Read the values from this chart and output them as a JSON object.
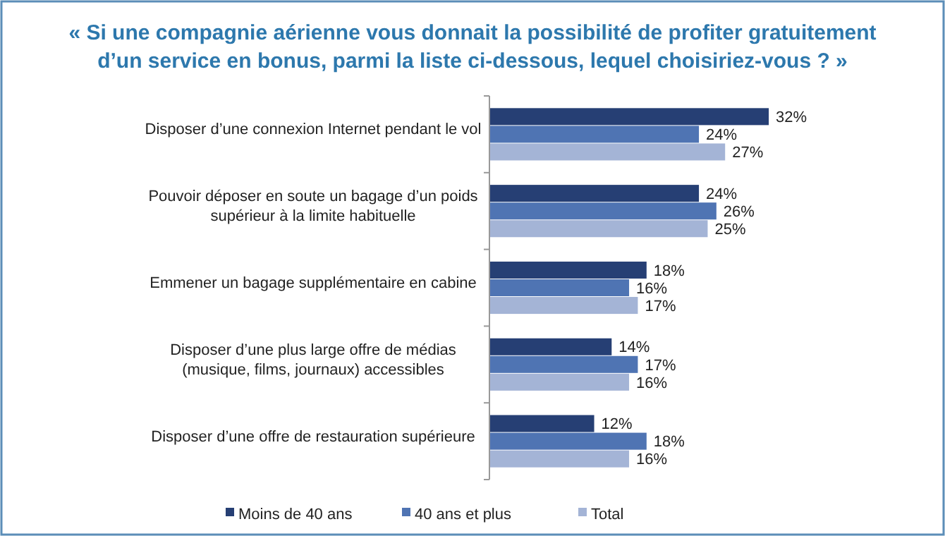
{
  "chart_data": {
    "type": "bar",
    "orientation": "horizontal",
    "title": "« Si une compagnie aérienne vous donnait la possibilité de profiter gratuitement d’un service en bonus, parmi la liste ci-dessous, lequel choisiriez-vous ? »",
    "categories": [
      "Disposer d’une connexion Internet pendant le vol",
      "Pouvoir déposer en soute un bagage d’un poids supérieur à la limite habituelle",
      "Emmener un bagage supplémentaire en cabine",
      "Disposer d’une plus large offre de médias (musique, films, journaux) accessibles",
      "Disposer d’une offre de restauration supérieure"
    ],
    "series": [
      {
        "name": "Moins de 40 ans",
        "color": "#263f74",
        "values": [
          32,
          24,
          18,
          14,
          12
        ],
        "value_labels": [
          "32%",
          "24%",
          "18%",
          "14%",
          "12%"
        ]
      },
      {
        "name": "40 ans et plus",
        "color": "#4f74b3",
        "values": [
          24,
          26,
          16,
          17,
          18
        ],
        "value_labels": [
          "24%",
          "26%",
          "16%",
          "17%",
          "18%"
        ]
      },
      {
        "name": "Total",
        "color": "#a4b4d6",
        "values": [
          27,
          25,
          17,
          16,
          16
        ],
        "value_labels": [
          "27%",
          "25%",
          "17%",
          "16%",
          "16%"
        ]
      }
    ],
    "legend": "bottom"
  }
}
